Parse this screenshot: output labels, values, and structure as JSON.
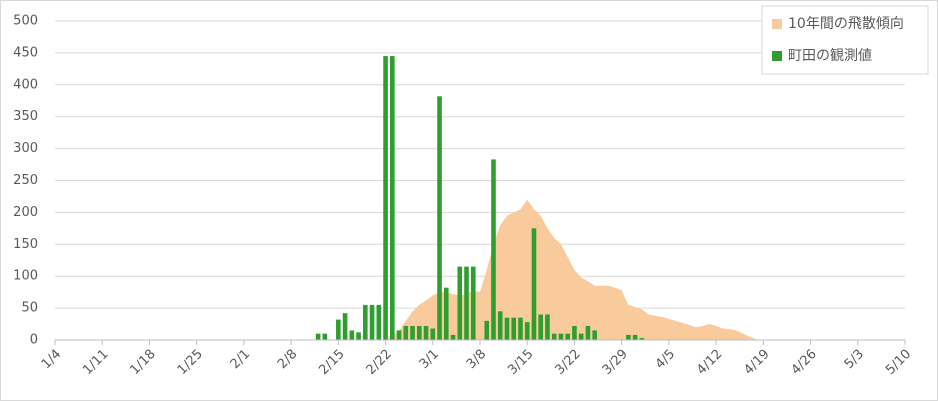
{
  "chart_data": {
    "type": "bar_area",
    "categories": [
      "1/4",
      null,
      null,
      null,
      null,
      null,
      null,
      "1/11",
      null,
      null,
      null,
      null,
      null,
      null,
      "1/18",
      null,
      null,
      null,
      null,
      null,
      null,
      "1/25",
      null,
      null,
      null,
      null,
      null,
      null,
      "2/1",
      null,
      null,
      null,
      null,
      null,
      null,
      "2/8",
      null,
      null,
      null,
      null,
      null,
      null,
      "2/15",
      null,
      null,
      null,
      null,
      null,
      null,
      "2/22",
      null,
      null,
      null,
      null,
      null,
      null,
      "3/1",
      null,
      null,
      null,
      null,
      null,
      null,
      "3/8",
      null,
      null,
      null,
      null,
      null,
      null,
      "3/15",
      null,
      null,
      null,
      null,
      null,
      null,
      "3/22",
      null,
      null,
      null,
      null,
      null,
      null,
      "3/29",
      null,
      null,
      null,
      null,
      null,
      null,
      "4/5",
      null,
      null,
      null,
      null,
      null,
      null,
      "4/12",
      null,
      null,
      null,
      null,
      null,
      null,
      "4/19",
      null,
      null,
      null,
      null,
      null,
      null,
      "4/26",
      null,
      null,
      null,
      null,
      null,
      null,
      "5/3",
      null,
      null,
      null,
      null,
      null,
      null,
      "5/10"
    ],
    "series": [
      {
        "name": "10年間の飛散傾向",
        "kind": "area",
        "color": "#f9cb9c",
        "values": [
          null,
          null,
          null,
          null,
          null,
          null,
          null,
          null,
          null,
          null,
          null,
          null,
          null,
          null,
          null,
          null,
          null,
          null,
          null,
          null,
          null,
          null,
          null,
          null,
          null,
          null,
          null,
          null,
          null,
          null,
          null,
          null,
          null,
          null,
          null,
          null,
          null,
          null,
          null,
          null,
          null,
          null,
          null,
          null,
          null,
          null,
          null,
          null,
          null,
          0,
          5,
          15,
          30,
          45,
          55,
          62,
          70,
          75,
          75,
          72,
          70,
          72,
          78,
          75,
          110,
          150,
          180,
          195,
          200,
          205,
          220,
          205,
          195,
          175,
          160,
          150,
          130,
          110,
          98,
          92,
          85,
          85,
          85,
          82,
          78,
          55,
          52,
          48,
          40,
          38,
          36,
          33,
          30,
          27,
          24,
          20,
          22,
          25,
          22,
          18,
          17,
          15,
          10,
          5,
          1,
          0,
          null,
          null,
          null,
          null,
          null,
          null,
          null,
          null,
          null,
          null,
          null,
          null,
          null,
          null,
          null,
          null,
          null,
          null,
          null,
          null,
          null
        ]
      },
      {
        "name": "町田の観測値",
        "kind": "bar",
        "color": "#2e9e2e",
        "values": [
          null,
          null,
          null,
          null,
          null,
          null,
          null,
          null,
          null,
          null,
          null,
          null,
          null,
          null,
          null,
          null,
          null,
          null,
          null,
          null,
          null,
          null,
          null,
          null,
          null,
          null,
          null,
          null,
          null,
          null,
          null,
          null,
          null,
          null,
          null,
          null,
          null,
          null,
          null,
          10,
          10,
          null,
          32,
          42,
          15,
          12,
          55,
          55,
          55,
          445,
          445,
          15,
          22,
          22,
          22,
          22,
          18,
          382,
          82,
          8,
          115,
          115,
          115,
          null,
          30,
          283,
          45,
          35,
          35,
          35,
          28,
          175,
          40,
          40,
          10,
          10,
          10,
          22,
          10,
          22,
          15,
          null,
          null,
          null,
          null,
          8,
          8,
          3,
          null,
          null,
          null,
          null,
          null,
          null,
          null,
          null,
          null,
          null,
          null,
          null,
          null,
          null,
          null,
          null,
          null,
          null,
          null,
          null,
          null,
          null,
          null,
          null,
          null,
          null,
          null,
          null,
          null,
          null,
          null,
          null,
          null,
          null,
          null,
          null,
          null,
          null,
          null
        ]
      }
    ],
    "ylim": [
      0,
      500
    ],
    "yticks": [
      0,
      50,
      100,
      150,
      200,
      250,
      300,
      350,
      400,
      450,
      500
    ],
    "grid": true,
    "legend": "top-right"
  }
}
